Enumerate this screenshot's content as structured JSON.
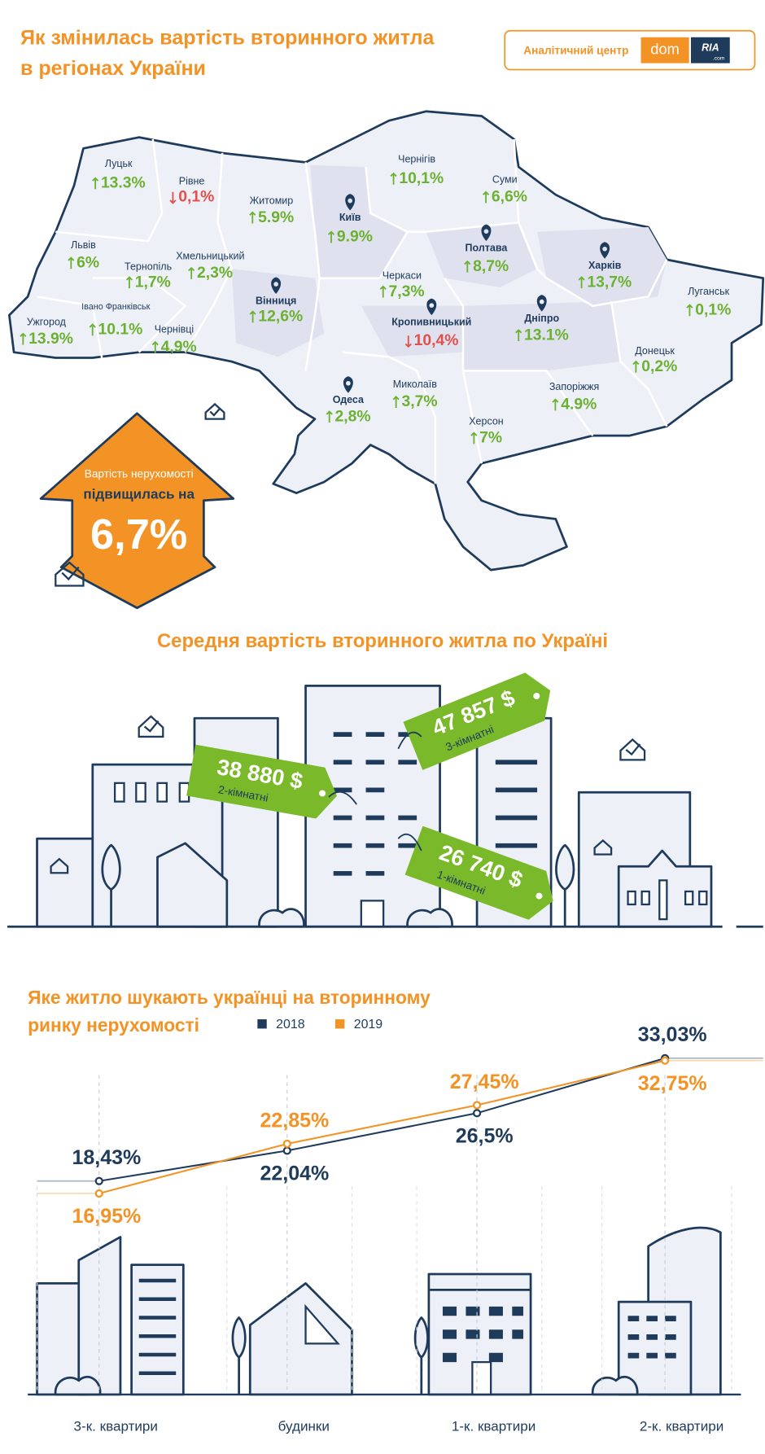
{
  "header": {
    "title": [
      "Як змінилась вартість вторинного житла",
      "в регіонах України"
    ],
    "logo": {
      "caption": "Аналітичний центр",
      "brand": "dom",
      "brand_mark": "RIA",
      "domain": ".com"
    }
  },
  "map": {
    "regions": [
      {
        "name": "Луцьк",
        "change": "13.3%",
        "trend": "up",
        "center": false
      },
      {
        "name": "Рівне",
        "change": "0,1%",
        "trend": "down",
        "center": false
      },
      {
        "name": "Житомир",
        "change": "5.9%",
        "trend": "up",
        "center": false
      },
      {
        "name": "Київ",
        "change": "9.9%",
        "trend": "up",
        "center": true
      },
      {
        "name": "Чернігів",
        "change": "10,1%",
        "trend": "up",
        "center": false
      },
      {
        "name": "Суми",
        "change": "6,6%",
        "trend": "up",
        "center": false
      },
      {
        "name": "Львів",
        "change": "6%",
        "trend": "up",
        "center": false
      },
      {
        "name": "Тернопіль",
        "change": "1,7%",
        "trend": "up",
        "center": false
      },
      {
        "name": "Хмельницький",
        "change": "2,3%",
        "trend": "up",
        "center": false
      },
      {
        "name": "Вінниця",
        "change": "12,6%",
        "trend": "up",
        "center": true
      },
      {
        "name": "Полтава",
        "change": "8,7%",
        "trend": "up",
        "center": true
      },
      {
        "name": "Харків",
        "change": "13,7%",
        "trend": "up",
        "center": true
      },
      {
        "name": "Луганськ",
        "change": "0,1%",
        "trend": "up",
        "center": false
      },
      {
        "name": "Черкаси",
        "change": "7,3%",
        "trend": "up",
        "center": false
      },
      {
        "name": "Кропивницький",
        "change": "10,4%",
        "trend": "down",
        "center": true
      },
      {
        "name": "Дніпро",
        "change": "13.1%",
        "trend": "up",
        "center": true
      },
      {
        "name": "Ужгород",
        "change": "13.9%",
        "trend": "up",
        "center": false
      },
      {
        "name": "Івано Франківськ",
        "change": "10.1%",
        "trend": "up",
        "center": false
      },
      {
        "name": "Чернівці",
        "change": "4,9%",
        "trend": "up",
        "center": false
      },
      {
        "name": "Донецьк",
        "change": "0,2%",
        "trend": "up",
        "center": false
      },
      {
        "name": "Одеса",
        "change": "2,8%",
        "trend": "up",
        "center": true
      },
      {
        "name": "Миколаїв",
        "change": "3,7%",
        "trend": "up",
        "center": false
      },
      {
        "name": "Запоріжжя",
        "change": "4.9%",
        "trend": "up",
        "center": false
      },
      {
        "name": "Херсон",
        "change": "7%",
        "trend": "up",
        "center": false
      }
    ],
    "badge": {
      "line1": "Вартість нерухомості",
      "line2": "підвищилась на",
      "value": "6,7%"
    }
  },
  "average": {
    "title": "Середня вартість вторинного житла по Україні",
    "items": [
      {
        "price": "38 880 $",
        "rooms": "2-кімнатні"
      },
      {
        "price": "47 857 $",
        "rooms": "3-кімнатні"
      },
      {
        "price": "26 740 $",
        "rooms": "1-кімнатні"
      }
    ]
  },
  "chart_data": {
    "type": "line",
    "title": [
      "Яке житло шукають українці на вторинному",
      "ринку нерухомості"
    ],
    "categories": [
      "3-к. квартири",
      "будинки",
      "1-к. квартири",
      "2-к. квартири"
    ],
    "series": [
      {
        "name": "2018",
        "color": "#1f3b5c",
        "values": [
          18.43,
          22.04,
          26.5,
          33.03
        ],
        "value_labels": [
          "18,43%",
          "22,04%",
          "26,5%",
          "33,03%"
        ]
      },
      {
        "name": "2019",
        "color": "#f39325",
        "values": [
          16.95,
          22.85,
          27.45,
          32.75
        ],
        "value_labels": [
          "16,95%",
          "22,85%",
          "27,45%",
          "32,75%"
        ]
      }
    ]
  }
}
